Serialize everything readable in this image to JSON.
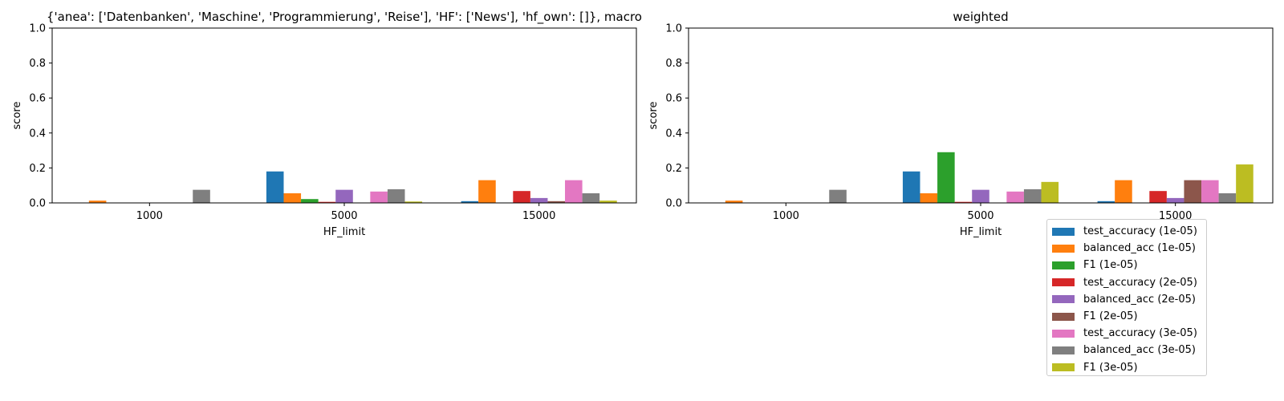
{
  "chart_data": [
    {
      "type": "bar",
      "title": "{'anea': ['Datenbanken', 'Maschine', 'Programmierung', 'Reise'], 'HF': ['News'], 'hf_own': []}, macro",
      "xlabel": "HF_limit",
      "ylabel": "score",
      "ylim": [
        0,
        1.0
      ],
      "yticks": [
        "0.0",
        "0.2",
        "0.4",
        "0.6",
        "0.8",
        "1.0"
      ],
      "categories": [
        "1000",
        "5000",
        "15000"
      ],
      "grid": false,
      "series": [
        {
          "name": "test_accuracy (1e-05)",
          "values": [
            0.0,
            0.18,
            0.01
          ]
        },
        {
          "name": "balanced_acc (1e-05)",
          "values": [
            0.013,
            0.055,
            0.13
          ]
        },
        {
          "name": "F1 (1e-05)",
          "values": [
            0.0,
            0.022,
            0.0
          ]
        },
        {
          "name": "test_accuracy (2e-05)",
          "values": [
            0.0,
            0.006,
            0.068
          ]
        },
        {
          "name": "balanced_acc (2e-05)",
          "values": [
            0.0,
            0.075,
            0.028
          ]
        },
        {
          "name": "F1 (2e-05)",
          "values": [
            0.0,
            0.0,
            0.01
          ]
        },
        {
          "name": "test_accuracy (3e-05)",
          "values": [
            0.0,
            0.065,
            0.13
          ]
        },
        {
          "name": "balanced_acc (3e-05)",
          "values": [
            0.075,
            0.078,
            0.055
          ]
        },
        {
          "name": "F1 (3e-05)",
          "values": [
            0.0,
            0.008,
            0.013
          ]
        }
      ]
    },
    {
      "type": "bar",
      "title": "weighted",
      "xlabel": "HF_limit",
      "ylabel": "score",
      "ylim": [
        0,
        1.0
      ],
      "yticks": [
        "0.0",
        "0.2",
        "0.4",
        "0.6",
        "0.8",
        "1.0"
      ],
      "categories": [
        "1000",
        "5000",
        "15000"
      ],
      "grid": false,
      "legend_position": "below-right",
      "series": [
        {
          "name": "test_accuracy (1e-05)",
          "values": [
            0.0,
            0.18,
            0.01
          ]
        },
        {
          "name": "balanced_acc (1e-05)",
          "values": [
            0.013,
            0.055,
            0.13
          ]
        },
        {
          "name": "F1 (1e-05)",
          "values": [
            0.0,
            0.29,
            0.0
          ]
        },
        {
          "name": "test_accuracy (2e-05)",
          "values": [
            0.0,
            0.006,
            0.068
          ]
        },
        {
          "name": "balanced_acc (2e-05)",
          "values": [
            0.0,
            0.075,
            0.028
          ]
        },
        {
          "name": "F1 (2e-05)",
          "values": [
            0.0,
            0.0,
            0.13
          ]
        },
        {
          "name": "test_accuracy (3e-05)",
          "values": [
            0.0,
            0.065,
            0.13
          ]
        },
        {
          "name": "balanced_acc (3e-05)",
          "values": [
            0.075,
            0.078,
            0.055
          ]
        },
        {
          "name": "F1 (3e-05)",
          "values": [
            0.0,
            0.12,
            0.22
          ]
        }
      ]
    }
  ],
  "colors": [
    "#1f77b4",
    "#ff7f0e",
    "#2ca02c",
    "#d62728",
    "#9467bd",
    "#8c564b",
    "#e377c2",
    "#7f7f7f",
    "#bcbd22"
  ],
  "legend": {
    "items": [
      {
        "label": "test_accuracy (1e-05)"
      },
      {
        "label": "balanced_acc (1e-05)"
      },
      {
        "label": "F1 (1e-05)"
      },
      {
        "label": "test_accuracy (2e-05)"
      },
      {
        "label": "balanced_acc (2e-05)"
      },
      {
        "label": "F1 (2e-05)"
      },
      {
        "label": "test_accuracy (3e-05)"
      },
      {
        "label": "balanced_acc (3e-05)"
      },
      {
        "label": "F1 (3e-05)"
      }
    ]
  }
}
